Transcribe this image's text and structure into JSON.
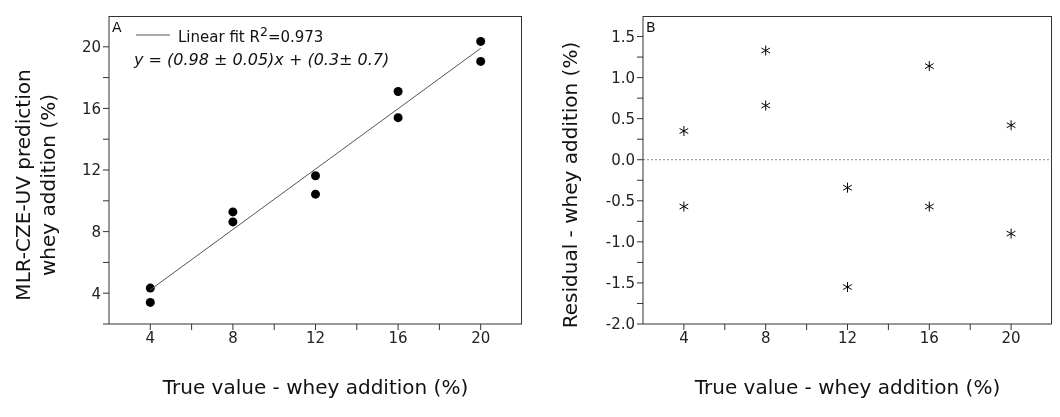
{
  "chart_data": [
    {
      "type": "scatter",
      "xlabel": "True value - whey addition (%)",
      "ylabel": "MLR-CZE-UV prediction\nwhey addition (%)",
      "annotations": [
        "A",
        "y = (0.98 ± 0.05)x + (0.3± 0.7)"
      ],
      "xlim": [
        2,
        22
      ],
      "ylim": [
        2,
        22
      ],
      "xticks": [
        4,
        {
          "value": 6,
          "label": null
        },
        8,
        {
          "value": 10,
          "label": null
        },
        12,
        {
          "value": 14,
          "label": null
        },
        16,
        {
          "value": 18,
          "label": null
        },
        20
      ],
      "yticks": [
        {
          "value": 2,
          "label": null
        },
        4,
        {
          "value": 6,
          "label": null
        },
        8,
        {
          "value": 10,
          "label": null
        },
        12,
        {
          "value": 14,
          "label": null
        },
        16,
        {
          "value": 18,
          "label": null
        },
        20
      ],
      "grid": false,
      "legend": "top left",
      "series": [
        {
          "marker": "circle",
          "color": "#000000",
          "x": [
            4,
            4,
            8,
            8,
            12,
            12,
            16,
            16,
            20,
            20
          ],
          "values": [
            4.33,
            3.4,
            9.28,
            8.63,
            11.63,
            10.43,
            17.1,
            15.4,
            20.35,
            19.05
          ]
        },
        {
          "type": "line",
          "name": "Linear fit R$^{2}$=0.973",
          "marker": "none",
          "line_style": "solid",
          "color": "#555555",
          "x": [
            4,
            20
          ],
          "values": [
            4.22,
            19.9
          ]
        }
      ]
    },
    {
      "type": "scatter",
      "xlabel": "True value - whey addition (%)",
      "ylabel": "Residual - whey addition (%)",
      "annotations": [
        "B"
      ],
      "xlim": [
        2,
        22
      ],
      "ylim": [
        -2,
        1.75
      ],
      "xticks": [
        4,
        {
          "value": 6,
          "label": null
        },
        8,
        {
          "value": 10,
          "label": null
        },
        12,
        {
          "value": 14,
          "label": null
        },
        16,
        {
          "value": 18,
          "label": null
        },
        20
      ],
      "yticks": [
        {
          "value": -2,
          "label": "-2.0"
        },
        {
          "value": -1.75,
          "label": null
        },
        -1.5,
        {
          "value": -1.25,
          "label": null
        },
        {
          "value": -1,
          "label": "-1.0"
        },
        {
          "value": -0.75,
          "label": null
        },
        -0.5,
        {
          "value": -0.25,
          "label": null
        },
        {
          "value": 0,
          "label": "0.0"
        },
        {
          "value": 0.25,
          "label": null
        },
        0.5,
        {
          "value": 0.75,
          "label": null
        },
        {
          "value": 1,
          "label": "1.0"
        },
        {
          "value": 1.25,
          "label": null
        },
        1.5
      ],
      "grid": false,
      "ref_lines": [
        {
          "axis": "y",
          "value": 0,
          "color": "#888888",
          "line_style": "dotted"
        }
      ],
      "series": [
        {
          "marker": "cross",
          "color": "#000000",
          "x": [
            4,
            4,
            8,
            8,
            12,
            12,
            16,
            16,
            20,
            20
          ],
          "values": [
            0.35,
            -0.57,
            1.33,
            0.66,
            -0.34,
            -1.55,
            1.14,
            -0.57,
            0.42,
            -0.9
          ]
        }
      ]
    }
  ]
}
